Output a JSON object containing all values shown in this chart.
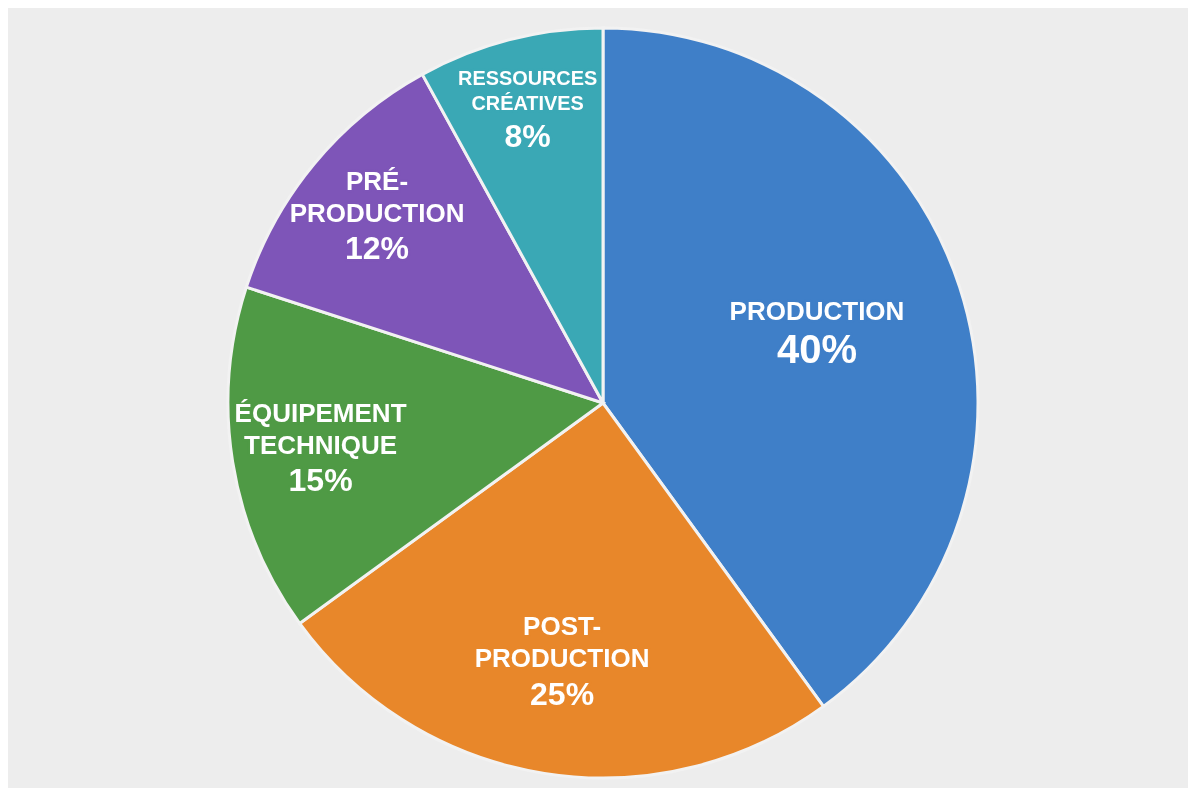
{
  "chart_data": {
    "type": "pie",
    "categories": [
      "PRODUCTION",
      "POST-PRODUCTION",
      "ÉQUIPEMENT TECHNIQUE",
      "PRÉ-PRODUCTION",
      "RESSOURCES CRÉATIVES"
    ],
    "values": [
      40,
      25,
      15,
      12,
      8
    ],
    "colors": [
      "#3f7fc8",
      "#e8872a",
      "#4f9a45",
      "#7e55b8",
      "#3aa8b5"
    ],
    "value_labels": [
      "40%",
      "25%",
      "15%",
      "12%",
      "8%"
    ]
  }
}
